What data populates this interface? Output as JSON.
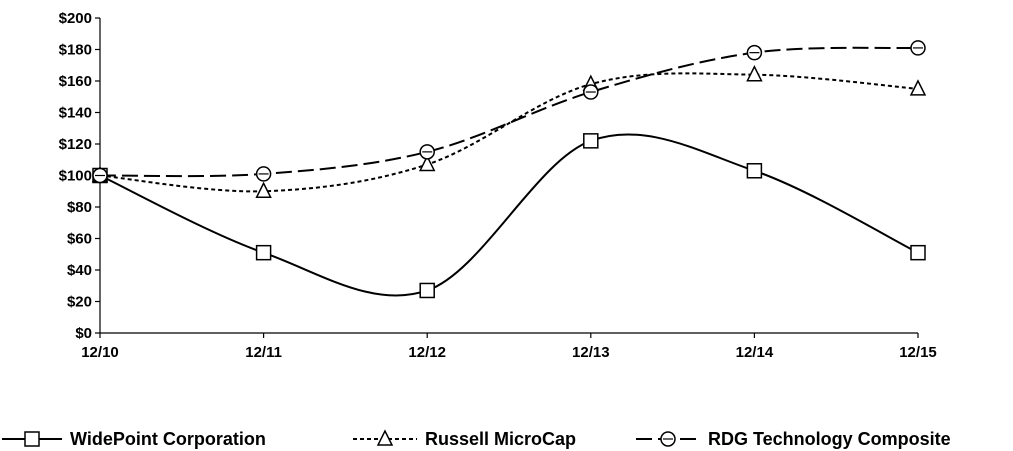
{
  "chart_data": {
    "type": "line",
    "categories": [
      "12/10",
      "12/11",
      "12/12",
      "12/13",
      "12/14",
      "12/15"
    ],
    "ylim": [
      0,
      200
    ],
    "y_ticks": [
      "$0",
      "$20",
      "$40",
      "$60",
      "$80",
      "$100",
      "$120",
      "$140",
      "$160",
      "$180",
      "$200"
    ],
    "grid": false,
    "legend_position": "bottom",
    "series": [
      {
        "name": "WidePoint Corporation",
        "values": [
          100,
          51,
          27,
          122,
          103,
          51
        ],
        "marker": "square",
        "dash": "solid"
      },
      {
        "name": "Russell MicroCap",
        "values": [
          100,
          90,
          107,
          158,
          164,
          155
        ],
        "marker": "triangle",
        "dash": "short-dash"
      },
      {
        "name": "RDG Technology Composite",
        "values": [
          100,
          101,
          115,
          153,
          178,
          181
        ],
        "marker": "circle",
        "dash": "long-dash"
      }
    ]
  }
}
